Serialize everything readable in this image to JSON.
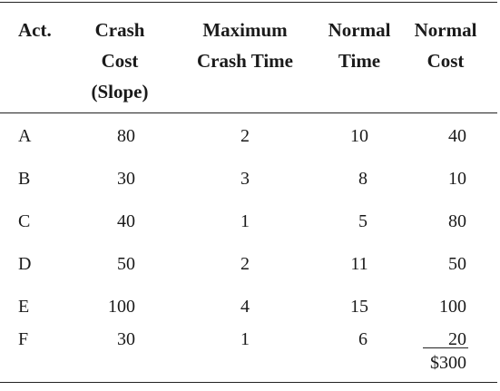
{
  "headers": {
    "act": [
      "Act."
    ],
    "crash_cost": [
      "Crash",
      "Cost",
      "(Slope)"
    ],
    "max_crash_time": [
      "Maximum",
      "Crash Time"
    ],
    "normal_time": [
      "Normal",
      "Time"
    ],
    "normal_cost": [
      "Normal",
      "Cost"
    ]
  },
  "rows": [
    {
      "act": "A",
      "crash_cost": "80",
      "max_crash_time": "2",
      "normal_time": "10",
      "normal_cost": "40"
    },
    {
      "act": "B",
      "crash_cost": "30",
      "max_crash_time": "3",
      "normal_time": "8",
      "normal_cost": "10"
    },
    {
      "act": "C",
      "crash_cost": "40",
      "max_crash_time": "1",
      "normal_time": "5",
      "normal_cost": "80"
    },
    {
      "act": "D",
      "crash_cost": "50",
      "max_crash_time": "2",
      "normal_time": "11",
      "normal_cost": "50"
    },
    {
      "act": "E",
      "crash_cost": "100",
      "max_crash_time": "4",
      "normal_time": "15",
      "normal_cost": "100"
    },
    {
      "act": "F",
      "crash_cost": "30",
      "max_crash_time": "1",
      "normal_time": "6",
      "normal_cost": "20"
    }
  ],
  "total_normal_cost": "$300"
}
